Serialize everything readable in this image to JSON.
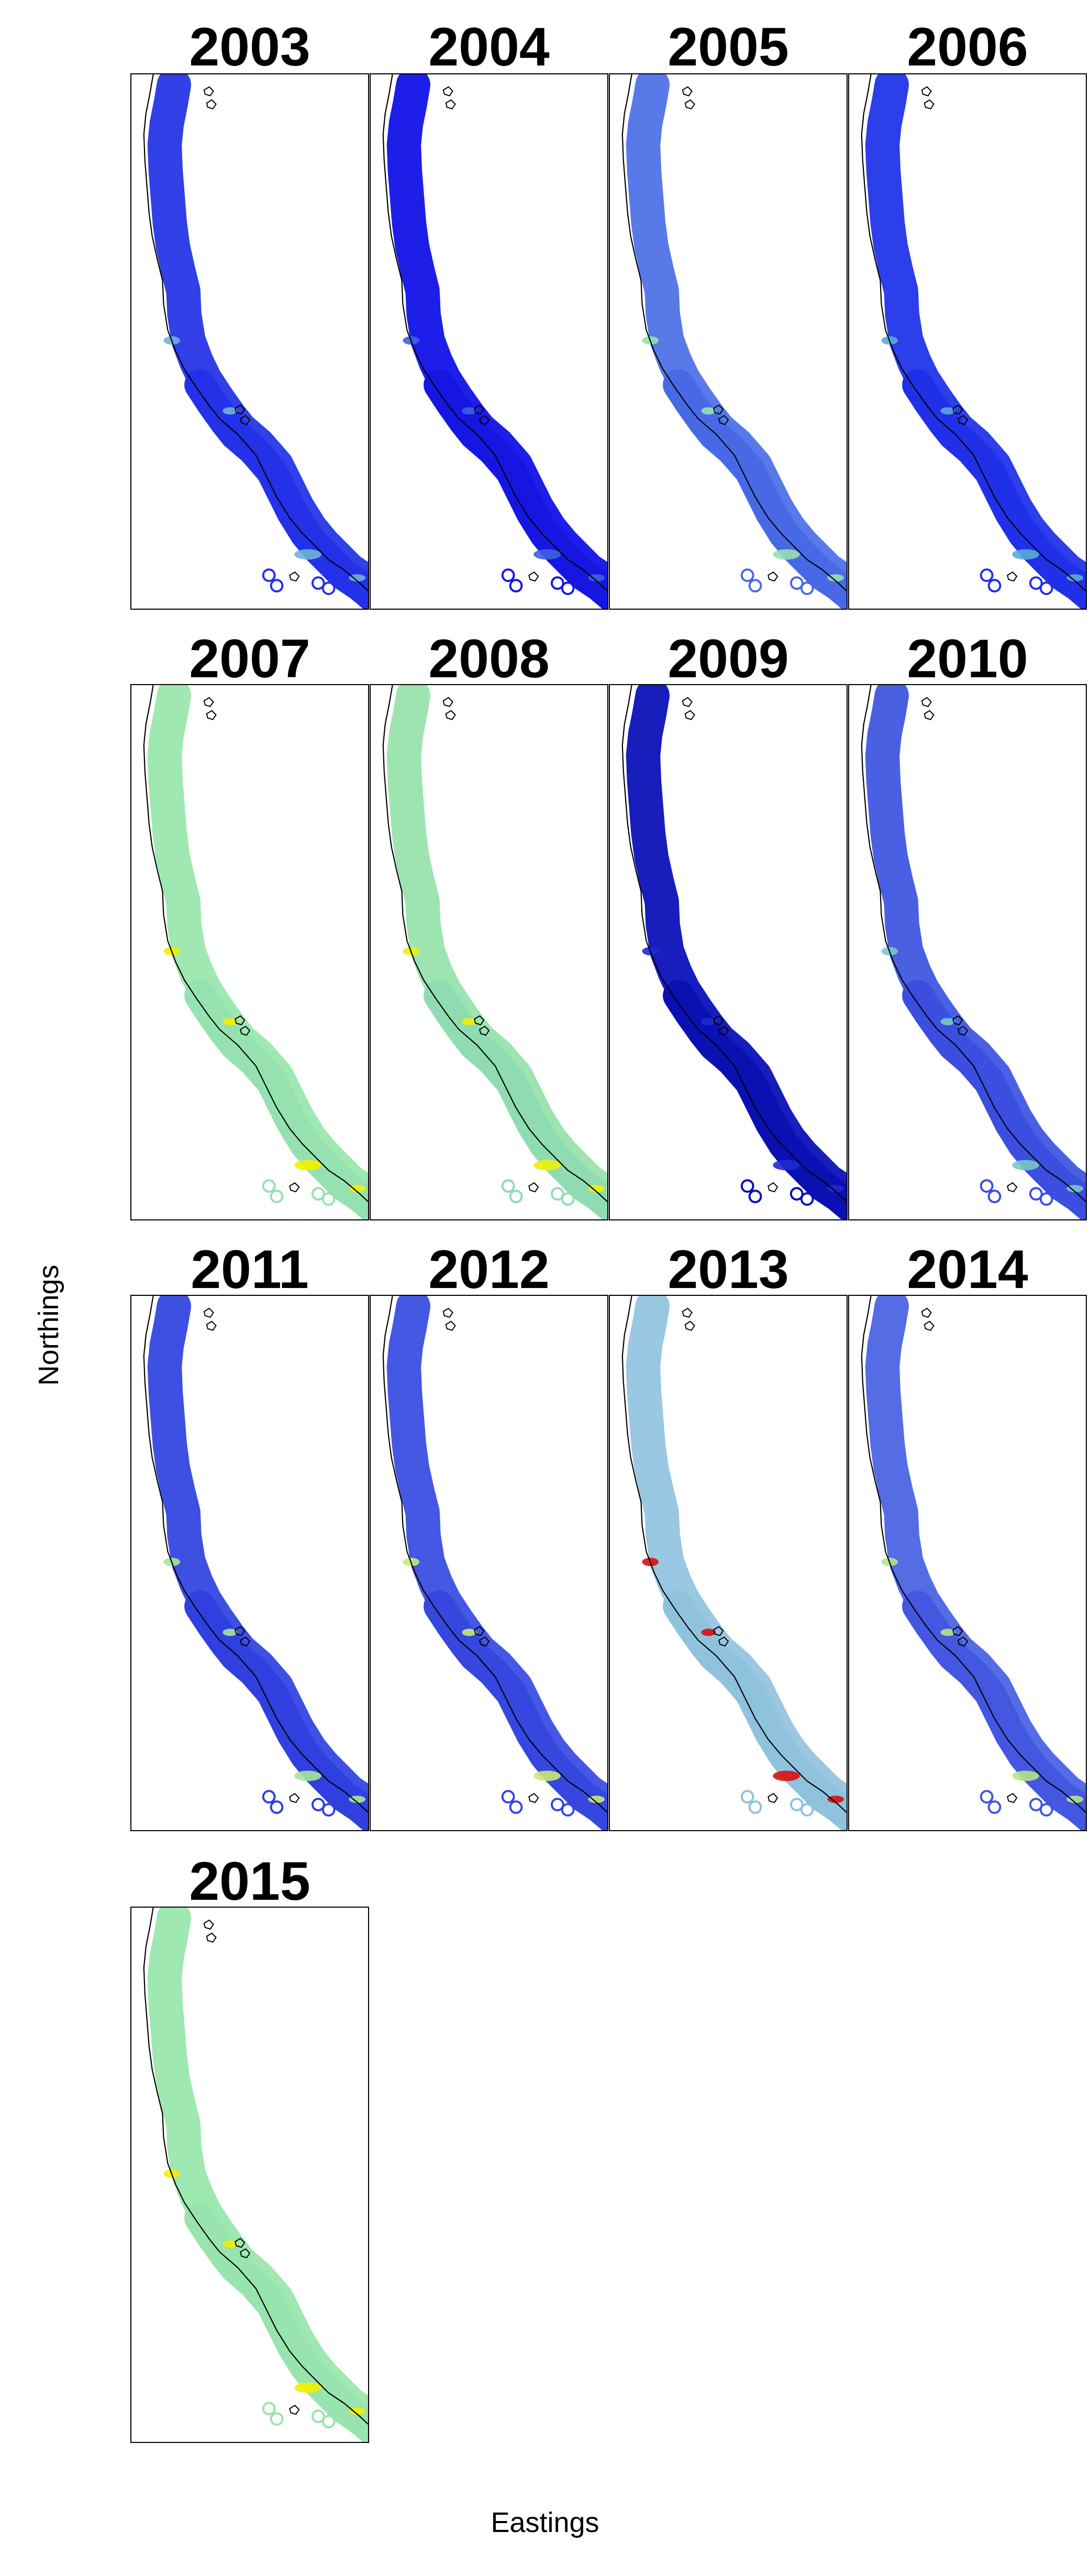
{
  "figure": {
    "x_label": "Eastings",
    "y_label": "Northings"
  },
  "panels": [
    {
      "year": "2003",
      "colors": {
        "north": "#2636e6",
        "south": "#2331e9",
        "hot": "#6fb3d8"
      }
    },
    {
      "year": "2004",
      "colors": {
        "north": "#1212e8",
        "south": "#1616e3",
        "hot": "#3c62e0"
      }
    },
    {
      "year": "2005",
      "colors": {
        "north": "#4f73e8",
        "south": "#4869e6",
        "hot": "#97dfb3"
      }
    },
    {
      "year": "2006",
      "colors": {
        "north": "#2135ea",
        "south": "#2030e8",
        "hot": "#5aa9d8"
      }
    },
    {
      "year": "2007",
      "colors": {
        "north": "#9ae7ad",
        "south": "#95e2b0",
        "hot": "#f5f000"
      }
    },
    {
      "year": "2008",
      "colors": {
        "north": "#98e3ad",
        "south": "#8fdcb2",
        "hot": "#f0ef08"
      }
    },
    {
      "year": "2009",
      "colors": {
        "north": "#0b12b8",
        "south": "#0a10b2",
        "hot": "#1c2bd0"
      }
    },
    {
      "year": "2010",
      "colors": {
        "north": "#4057e2",
        "south": "#3a4ee0",
        "hot": "#7cc7c8"
      }
    },
    {
      "year": "2011",
      "colors": {
        "north": "#3447e0",
        "south": "#2f3fe0",
        "hot": "#a6e59a"
      }
    },
    {
      "year": "2012",
      "colors": {
        "north": "#3a4fe2",
        "south": "#3547de",
        "hot": "#c8e878"
      }
    },
    {
      "year": "2013",
      "colors": {
        "north": "#95c4e0",
        "south": "#8fc2dc",
        "hot": "#d81010"
      }
    },
    {
      "year": "2014",
      "colors": {
        "north": "#4b64e3",
        "south": "#4357e0",
        "hot": "#b4e48a"
      }
    },
    {
      "year": "2015",
      "colors": {
        "north": "#9ae7ad",
        "south": "#98e4ae",
        "hot": "#f3ee00"
      }
    }
  ]
}
